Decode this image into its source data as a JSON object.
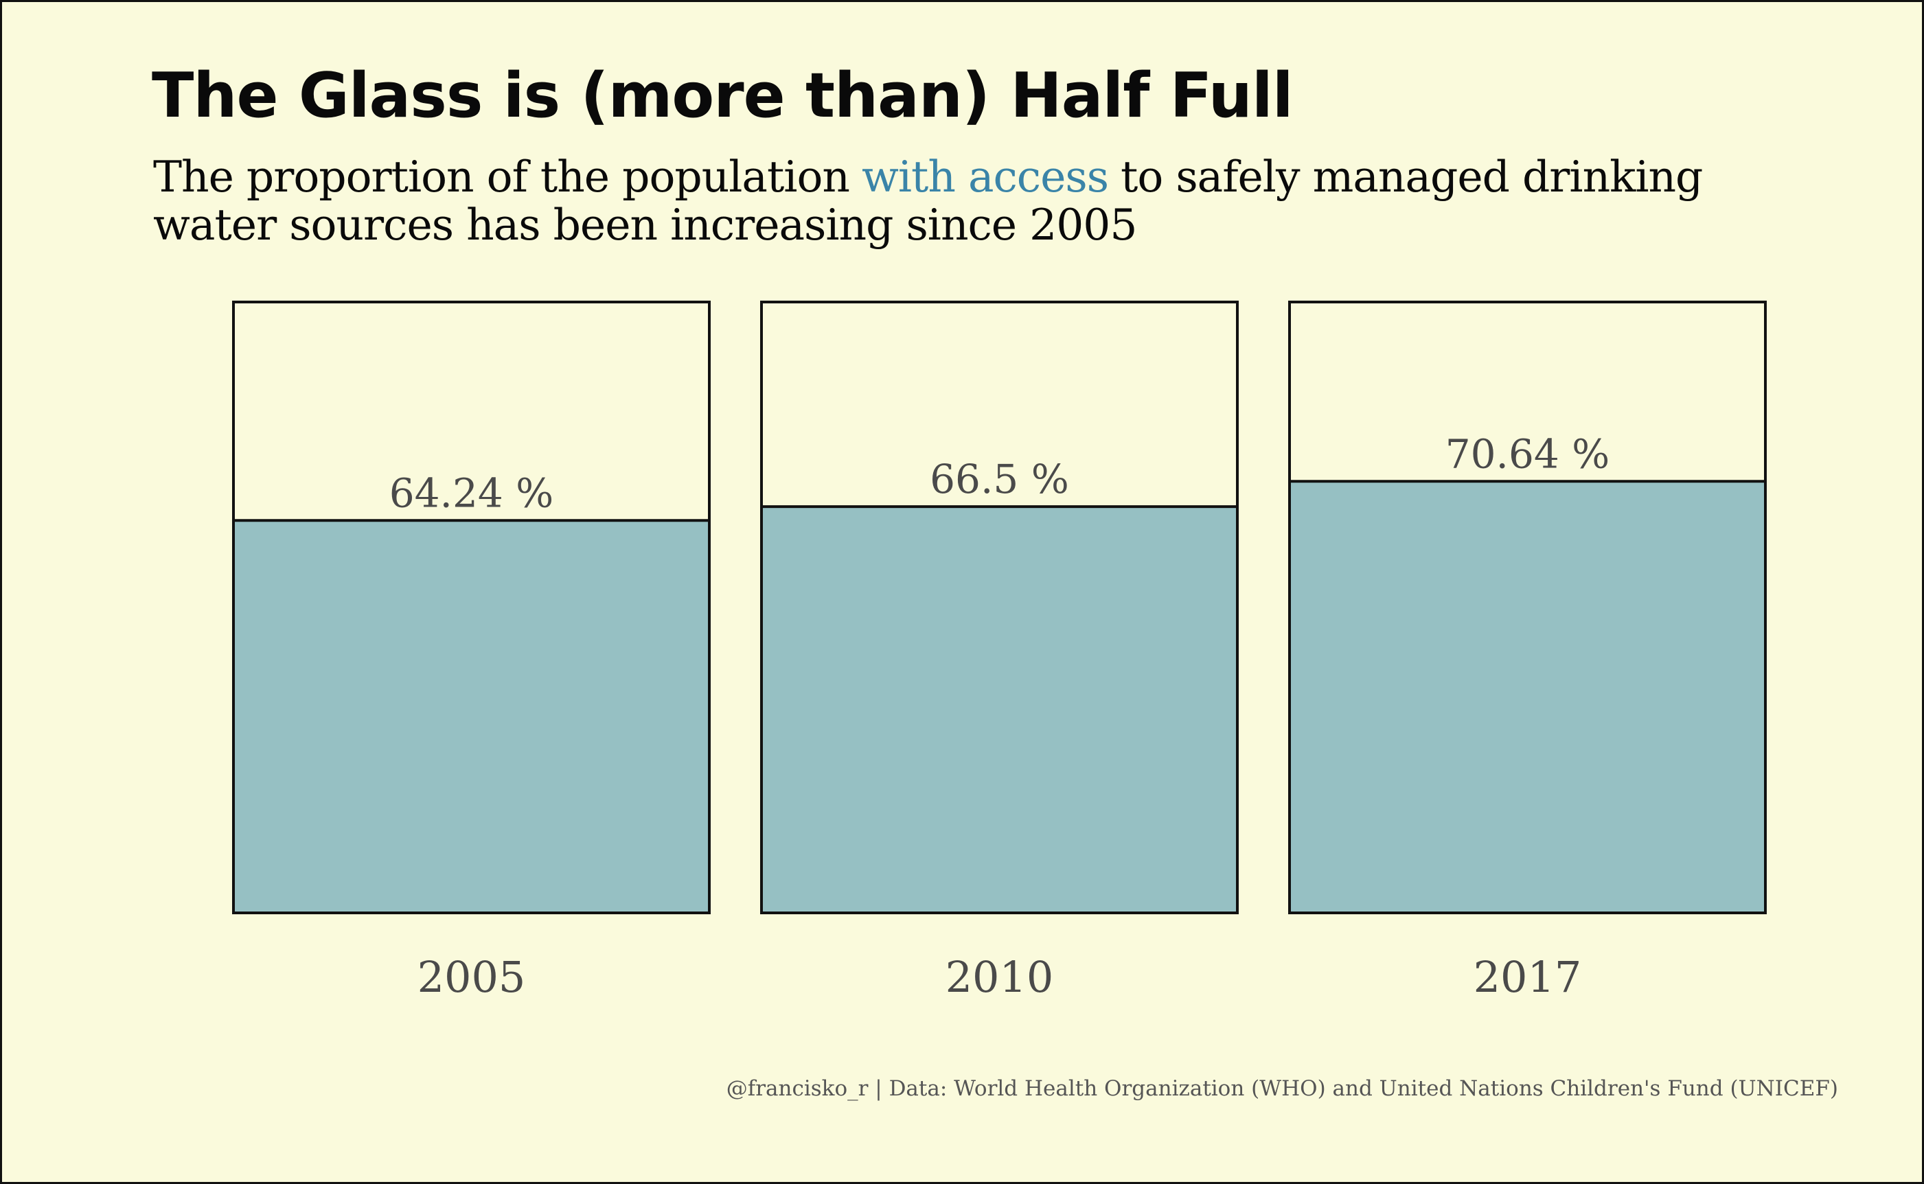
{
  "chart_data": {
    "type": "bar",
    "title": "The Glass is (more than) Half Full",
    "subtitle_before": "The proportion of the population",
    "subtitle_highlight": "with access",
    "subtitle_after": "to safely managed drinking",
    "subtitle_line2": "water sources has been increasing since 2005",
    "categories": [
      "2005",
      "2010",
      "2017"
    ],
    "values": [
      64.24,
      66.5,
      70.64
    ],
    "value_labels": [
      "64.24 %",
      "66.5 %",
      "70.64 %"
    ],
    "ylim": [
      0,
      100
    ],
    "grid": false,
    "legend": "none",
    "colors": {
      "water": "#96c0c3",
      "empty": "#fafadc",
      "outline": "#111111",
      "highlight": "#3a84a8",
      "label": "#4a4a4a"
    },
    "caption": "@francisko_r |  Data: World Health Organization (WHO) and United Nations Children's Fund (UNICEF)"
  }
}
